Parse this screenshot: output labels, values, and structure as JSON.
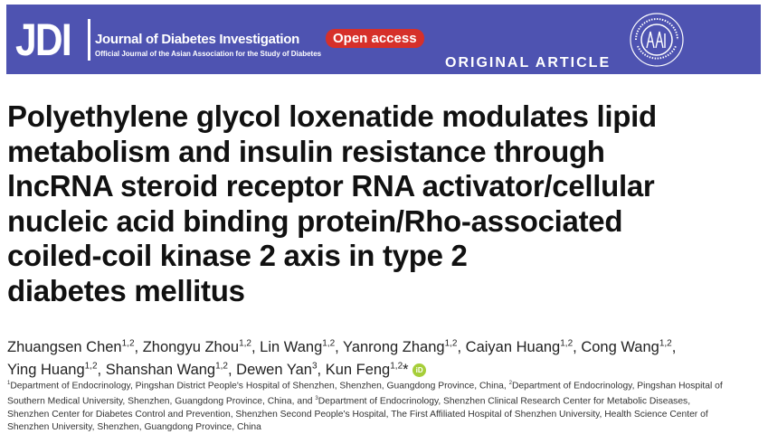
{
  "header": {
    "logo": "JDI",
    "journal_name": "Journal of Diabetes Investigation",
    "journal_subtitle": "Official Journal of the Asian Association for the Study of Diabetes",
    "open_access": "Open access",
    "article_type": "ORIGINAL ARTICLE",
    "seal_text": "THE ASIAN ASSOCIATION FOR THE STUDY OF DIABETES",
    "seal_letters": "AASD",
    "banner_color": "#4e53b1",
    "open_access_color": "#d6302a"
  },
  "title_lines": [
    "Polyethylene glycol loxenatide modulates lipid",
    "metabolism and insulin resistance through",
    "lncRNA steroid receptor RNA activator/cellular",
    "nucleic acid binding protein/Rho-associated",
    "coiled-coil kinase 2 axis in type 2",
    "diabetes mellitus"
  ],
  "authors": [
    {
      "name": "Zhuangsen Chen",
      "sup": "1,2",
      "sep": ", "
    },
    {
      "name": "Zhongyu Zhou",
      "sup": "1,2",
      "sep": ", "
    },
    {
      "name": "Lin Wang",
      "sup": "1,2",
      "sep": ", "
    },
    {
      "name": "Yanrong Zhang",
      "sup": "1,2",
      "sep": ", "
    },
    {
      "name": "Caiyan Huang",
      "sup": "1,2",
      "sep": ", "
    },
    {
      "name": "Cong Wang",
      "sup": "1,2",
      "sep": ","
    },
    {
      "name": "Ying Huang",
      "sup": "1,2",
      "sep": ", "
    },
    {
      "name": "Shanshan Wang",
      "sup": "1,2",
      "sep": ", "
    },
    {
      "name": "Dewen Yan",
      "sup": "3",
      "sep": ", "
    },
    {
      "name": "Kun Feng",
      "sup": "1,2",
      "sep": "*"
    }
  ],
  "orcid": "iD",
  "affiliations": [
    {
      "sup": "1",
      "text": "Department of Endocrinology, Pingshan District People's Hospital of Shenzhen, Shenzhen, Guangdong Province, China, "
    },
    {
      "sup": "2",
      "text": "Department of Endocrinology, Pingshan Hospital of Southern Medical University, Shenzhen, Guangdong Province, China, and "
    },
    {
      "sup": "3",
      "text": "Department of Endocrinology, Shenzhen Clinical Research Center for Metabolic Diseases, Shenzhen Center for Diabetes Control and Prevention, Shenzhen Second People's Hospital, The First Affiliated Hospital of Shenzhen University, Health Science Center of Shenzhen University, Shenzhen, Guangdong Province, China"
    }
  ]
}
